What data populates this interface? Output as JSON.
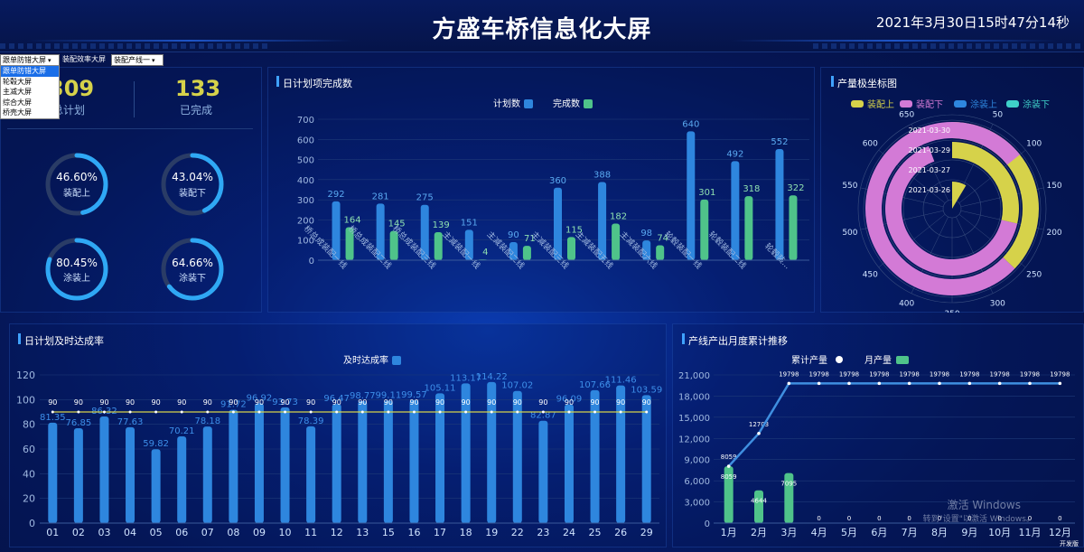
{
  "header": {
    "title": "方盛车桥信息化大屏",
    "datetime": "2021年3月30日15时47分14秒"
  },
  "selectors": [
    {
      "value": "跟单防错大屏"
    },
    {
      "value": "装配效率大屏"
    },
    {
      "value": "装配产线一"
    }
  ],
  "dropdown_options": [
    "跟单防错大屏",
    "轮毂大屏",
    "主减大屏",
    "综合大屏",
    "桥壳大屏"
  ],
  "kpi": {
    "total_plan_value": "309",
    "total_plan_label": "总计划",
    "completed_value": "133",
    "completed_label": "已完成"
  },
  "rings": [
    {
      "value": "46.60%",
      "label": "装配上",
      "pct": 46.6
    },
    {
      "value": "43.04%",
      "label": "装配下",
      "pct": 43.04
    },
    {
      "value": "80.45%",
      "label": "涂装上",
      "pct": 80.45
    },
    {
      "value": "64.66%",
      "label": "涂装下",
      "pct": 64.66
    }
  ],
  "colors": {
    "blue_bar": "#2e86de",
    "green_bar": "#4fc38a",
    "yellow": "#d6d24a",
    "pink": "#d37ad6",
    "cyan": "#3fd0c8",
    "ring_track": "#2a3c66",
    "ring_fill": "#2fa8f5"
  },
  "charts": [
    {
      "panel_title": "日计划项完成数",
      "chart_data": {
        "type": "bar",
        "categories": [
          "桥总成装配一线",
          "桥总成装配二线",
          "桥总成装配三线",
          "主减装配一线",
          "主减装配二线",
          "主减装配三线",
          "主减装配五线",
          "主减装配六线",
          "轮毂装配一线",
          "轮毂装配二线",
          "轮毂装..."
        ],
        "series": [
          {
            "name": "计划数",
            "values": [
              292,
              281,
              275,
              151,
              90,
              360,
              388,
              98,
              640,
              492,
              552
            ]
          },
          {
            "name": "完成数",
            "values": [
              164,
              145,
              139,
              4,
              71,
              115,
              182,
              74,
              301,
              318,
              322
            ]
          }
        ],
        "yticks": [
          "0",
          "100",
          "200",
          "300",
          "400",
          "500",
          "600",
          "700"
        ],
        "ylim": [
          0,
          700
        ]
      }
    },
    {
      "panel_title": "产量极坐标图",
      "chart_data": {
        "type": "polar-bar",
        "legend": [
          "装配上",
          "装配下",
          "涂装上",
          "涂装下"
        ],
        "radial_categories": [
          "2021-03-26",
          "2021-03-27",
          "2021-03-29",
          "2021-03-30"
        ],
        "angle_ticks": [
          "50",
          "100",
          "150",
          "200",
          "250",
          "300",
          "350",
          "400",
          "450",
          "500",
          "550",
          "600",
          "650"
        ],
        "angle_max": 700,
        "series": [
          {
            "name": "装配上",
            "values": [
              0,
              0,
              200,
              260
            ]
          },
          {
            "name": "装配下",
            "values": [
              0,
              0,
              460,
              540
            ]
          },
          {
            "name": "涂装上",
            "values": [
              0,
              0,
              0,
              0
            ]
          },
          {
            "name": "涂装下",
            "values": [
              0,
              0,
              0,
              0
            ]
          }
        ]
      }
    },
    {
      "panel_title": "日计划及时达成率",
      "chart_data": {
        "type": "bar",
        "categories": [
          "01",
          "02",
          "03",
          "04",
          "05",
          "06",
          "07",
          "08",
          "09",
          "10",
          "11",
          "12",
          "13",
          "15",
          "16",
          "17",
          "18",
          "19",
          "22",
          "23",
          "24",
          "25",
          "26",
          "29"
        ],
        "series": [
          {
            "name": "及时达成率",
            "values": [
              81.35,
              76.85,
              86.32,
              77.63,
              59.82,
              70.21,
              78.18,
              91.72,
              96.92,
              93.73,
              78.39,
              96.47,
              98.77,
              99.11,
              99.57,
              105.11,
              113.17,
              114.22,
              107.02,
              82.87,
              96.09,
              107.66,
              111.46,
              103.59
            ]
          },
          {
            "name": "",
            "values": [
              90,
              90,
              90,
              90,
              90,
              90,
              90,
              90,
              90,
              90,
              90,
              90,
              90,
              90,
              90,
              90,
              90,
              90,
              90,
              90,
              90,
              90,
              90,
              90
            ]
          }
        ],
        "yticks": [
          "0",
          "20",
          "40",
          "60",
          "80",
          "100",
          "120"
        ],
        "ylim": [
          0,
          120
        ]
      }
    },
    {
      "panel_title": "产线产出月度累计推移",
      "chart_data": {
        "type": "line",
        "categories": [
          "1月",
          "2月",
          "3月",
          "4月",
          "5月",
          "6月",
          "7月",
          "8月",
          "9月",
          "10月",
          "11月",
          "12月"
        ],
        "series": [
          {
            "name": "累计产量",
            "values": [
              8059,
              12703,
              19798,
              19798,
              19798,
              19798,
              19798,
              19798,
              19798,
              19798,
              19798,
              19798
            ]
          },
          {
            "name": "月产量",
            "values": [
              8059,
              4644,
              7095,
              0,
              0,
              0,
              0,
              0,
              0,
              0,
              0,
              0
            ]
          }
        ],
        "yticks": [
          "0",
          "3,000",
          "6,000",
          "9,000",
          "12,000",
          "15,000",
          "18,000",
          "21,000"
        ],
        "ylim": [
          0,
          21000
        ]
      }
    }
  ],
  "watermark": {
    "line1": "激活 Windows",
    "line2": "转到\"设置\"以激活 Windows。"
  },
  "dev_tag": "开发版"
}
